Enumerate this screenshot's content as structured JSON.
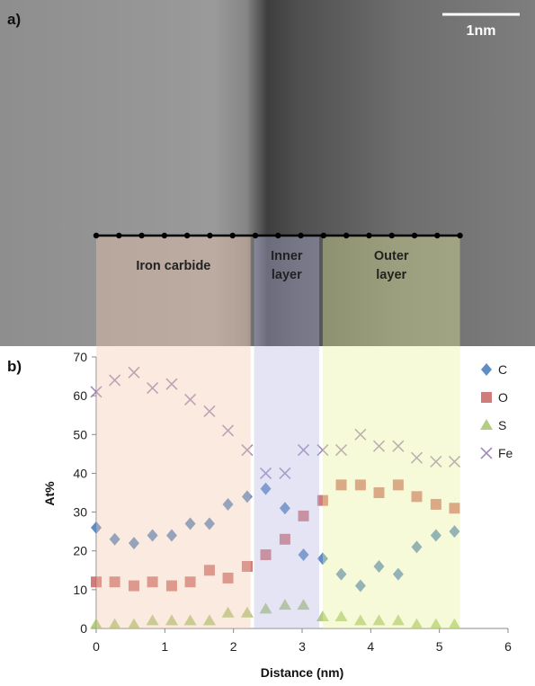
{
  "panels": {
    "a_label": "a)",
    "b_label": "b)"
  },
  "micrograph": {
    "scale_bar_label": "1nm",
    "regions": [
      {
        "name": "iron-carbide",
        "lines": [
          "Iron carbide"
        ],
        "x_range": [
          0,
          2.25
        ],
        "color": "#f3c9ad"
      },
      {
        "name": "inner-layer",
        "lines": [
          "Inner",
          "layer"
        ],
        "x_range": [
          2.3,
          3.25
        ],
        "color": "#b9b9e6"
      },
      {
        "name": "outer-layer",
        "lines": [
          "Outer",
          "layer"
        ],
        "x_range": [
          3.3,
          5.3
        ],
        "color": "#eaf29c"
      }
    ],
    "line_scan_points": 17
  },
  "chart_data": {
    "type": "scatter",
    "xlabel": "Distance (nm)",
    "ylabel": "At%",
    "xlim": [
      0,
      6
    ],
    "ylim": [
      0,
      70
    ],
    "xticks": [
      0,
      1,
      2,
      3,
      4,
      5,
      6
    ],
    "yticks": [
      0,
      10,
      20,
      30,
      40,
      50,
      60,
      70
    ],
    "grid": false,
    "legend_position": "right",
    "x": [
      0,
      0.27,
      0.55,
      0.82,
      1.1,
      1.37,
      1.65,
      1.92,
      2.2,
      2.47,
      2.75,
      3.02,
      3.3,
      3.57,
      3.85,
      4.12,
      4.4,
      4.67,
      4.95,
      5.22
    ],
    "series": [
      {
        "name": "C",
        "marker": "diamond",
        "color": "#4f81bd",
        "values": [
          26,
          23,
          22,
          24,
          24,
          27,
          27,
          32,
          34,
          36,
          31,
          19,
          18,
          14,
          11,
          16,
          14,
          21,
          24,
          25
        ]
      },
      {
        "name": "O",
        "marker": "square",
        "color": "#c0504d",
        "values": [
          12,
          12,
          11,
          12,
          11,
          12,
          15,
          13,
          16,
          19,
          23,
          29,
          33,
          37,
          37,
          35,
          37,
          34,
          32,
          31
        ]
      },
      {
        "name": "S",
        "marker": "triangle",
        "color": "#9bbb59",
        "values": [
          1,
          1,
          1,
          2,
          2,
          2,
          2,
          4,
          4,
          5,
          6,
          6,
          3,
          3,
          2,
          2,
          2,
          1,
          1,
          1
        ]
      },
      {
        "name": "Fe",
        "marker": "x",
        "color": "#8064a2",
        "values": [
          61,
          64,
          66,
          62,
          63,
          59,
          56,
          51,
          46,
          40,
          40,
          46,
          46,
          46,
          50,
          47,
          47,
          44,
          43,
          43
        ]
      }
    ]
  }
}
